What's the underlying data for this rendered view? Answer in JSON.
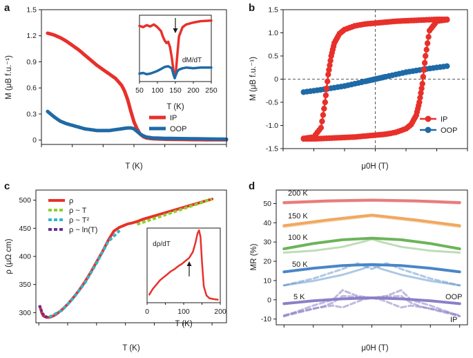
{
  "colors": {
    "red": "#e8302a",
    "blue": "#1e6aa6",
    "green": "#8ccf2e",
    "cyan": "#2fb6cc",
    "purple": "#6b2e90",
    "t200": "#e87c7c",
    "t150": "#f0a860",
    "t100": "#6db35a",
    "t50": "#4a86c6",
    "t5": "#8b80c6"
  },
  "panels": {
    "a": "a",
    "b": "b",
    "c": "c",
    "d": "d"
  },
  "chart_data": [
    {
      "id": "a",
      "type": "line",
      "xlabel": "T (K)",
      "ylabel": "M (μB f.u.⁻¹)",
      "xlim": [
        0,
        300
      ],
      "ylim": [
        -0.05,
        1.5
      ],
      "xticks": [
        0,
        50,
        100,
        150,
        200,
        250,
        300
      ],
      "yticks": [
        0,
        0.3,
        0.6,
        0.9,
        1.2,
        1.5
      ],
      "ytick_labels": [
        "0",
        "0.3",
        "0.6",
        "0.9",
        "1.2",
        "1.5"
      ],
      "legend": [
        "IP",
        "OOP"
      ],
      "series": [
        {
          "name": "IP",
          "x": [
            10,
            20,
            30,
            40,
            50,
            60,
            70,
            80,
            90,
            100,
            110,
            120,
            130,
            135,
            140,
            145,
            150,
            155,
            160,
            165,
            170,
            180,
            200,
            250,
            300
          ],
          "y": [
            1.23,
            1.21,
            1.18,
            1.14,
            1.09,
            1.04,
            0.98,
            0.92,
            0.86,
            0.81,
            0.76,
            0.71,
            0.63,
            0.56,
            0.46,
            0.33,
            0.21,
            0.13,
            0.07,
            0.04,
            0.025,
            0.015,
            0.01,
            0.005,
            0.003
          ]
        },
        {
          "name": "OOP",
          "x": [
            10,
            20,
            30,
            40,
            50,
            60,
            70,
            80,
            90,
            100,
            110,
            120,
            130,
            140,
            145,
            150,
            155,
            160,
            165,
            170,
            180,
            200,
            250,
            300
          ],
          "y": [
            0.33,
            0.27,
            0.22,
            0.19,
            0.17,
            0.15,
            0.13,
            0.12,
            0.11,
            0.11,
            0.11,
            0.12,
            0.13,
            0.14,
            0.14,
            0.13,
            0.1,
            0.07,
            0.05,
            0.035,
            0.025,
            0.02,
            0.015,
            0.01
          ]
        }
      ],
      "inset": {
        "xlabel": "T (K)",
        "annotation": "dM/dT",
        "xlim": [
          50,
          250
        ],
        "xticks": [
          50,
          100,
          150,
          200,
          250
        ],
        "series": [
          {
            "name": "IP",
            "x": [
              50,
              60,
              70,
              80,
              90,
              100,
              110,
              115,
              120,
              125,
              130,
              135,
              140,
              145,
              148,
              151,
              155,
              160,
              170,
              180,
              200,
              220,
              250
            ],
            "y": [
              0.84,
              0.82,
              0.85,
              0.83,
              0.86,
              0.82,
              0.76,
              0.68,
              0.62,
              0.58,
              0.6,
              0.52,
              0.36,
              0.15,
              0.08,
              0.12,
              0.38,
              0.68,
              0.82,
              0.86,
              0.89,
              0.91,
              0.92
            ]
          },
          {
            "name": "OOP",
            "x": [
              50,
              60,
              70,
              80,
              90,
              100,
              110,
              120,
              130,
              140,
              145,
              148,
              150,
              155,
              160,
              170,
              180,
              200,
              220,
              250
            ],
            "y": [
              0.12,
              0.13,
              0.11,
              0.12,
              0.14,
              0.16,
              0.19,
              0.22,
              0.23,
              0.2,
              0.1,
              0.05,
              0.08,
              0.15,
              0.18,
              0.2,
              0.21,
              0.2,
              0.21,
              0.21
            ]
          }
        ]
      }
    },
    {
      "id": "b",
      "type": "line",
      "xlabel": "μ0H (T)",
      "ylabel": "M (μB f.u.⁻¹)",
      "xlim": [
        -9,
        9
      ],
      "ylim": [
        -1.5,
        1.5
      ],
      "xticks": [
        -9,
        -6,
        -3,
        0,
        3,
        6,
        9
      ],
      "yticks": [
        -1.5,
        -1.0,
        -0.5,
        0,
        0.5,
        1.0,
        1.5
      ],
      "ytick_labels": [
        "-1.5",
        "-1.0",
        "-0.5",
        "0",
        "0.5",
        "1.0",
        "1.5"
      ],
      "legend": [
        "IP",
        "OOP"
      ],
      "series": [
        {
          "name": "IP upper",
          "x": [
            7,
            6,
            5,
            4,
            3,
            2,
            1,
            0,
            -1,
            -2,
            -3,
            -3.5,
            -4,
            -4.3,
            -4.6,
            -4.9,
            -5.3,
            -6,
            -7
          ],
          "y": [
            1.29,
            1.29,
            1.28,
            1.27,
            1.26,
            1.25,
            1.23,
            1.21,
            1.19,
            1.15,
            1.07,
            0.98,
            0.78,
            0.5,
            0.1,
            -0.5,
            -1.05,
            -1.25,
            -1.28
          ]
        },
        {
          "name": "IP lower",
          "x": [
            -7,
            -6,
            -5,
            -4,
            -3,
            -2,
            -1,
            0,
            1,
            2,
            3,
            3.5,
            4,
            4.3,
            4.6,
            4.9,
            5.3,
            6,
            7
          ],
          "y": [
            -1.29,
            -1.29,
            -1.28,
            -1.27,
            -1.26,
            -1.25,
            -1.23,
            -1.21,
            -1.19,
            -1.15,
            -1.07,
            -0.98,
            -0.78,
            -0.5,
            -0.1,
            0.5,
            1.05,
            1.25,
            1.28
          ]
        },
        {
          "name": "OOP",
          "x": [
            -7,
            -5,
            -3,
            -1,
            0,
            1,
            3,
            5,
            7
          ],
          "y": [
            -0.28,
            -0.22,
            -0.15,
            -0.05,
            0.0,
            0.05,
            0.15,
            0.22,
            0.28
          ]
        }
      ]
    },
    {
      "id": "c",
      "type": "line",
      "xlabel": "T (K)",
      "ylabel": "ρ (μΩ cm)",
      "xlim": [
        -5,
        325
      ],
      "ylim": [
        282,
        518
      ],
      "xticks": [
        0,
        50,
        100,
        150,
        200,
        250,
        300
      ],
      "yticks": [
        300,
        350,
        400,
        450,
        500
      ],
      "legend": [
        "ρ",
        "ρ ~ T",
        "ρ ~ T²",
        "ρ ~ ln(T)"
      ],
      "series": [
        {
          "name": "ρ",
          "x": [
            2,
            5,
            8,
            12,
            16,
            20,
            25,
            30,
            40,
            50,
            60,
            70,
            80,
            90,
            100,
            110,
            120,
            130,
            140,
            145,
            150,
            155,
            160,
            170,
            180,
            200,
            220,
            240,
            260,
            280,
            300
          ],
          "y": [
            311,
            300,
            294,
            292,
            291.5,
            292,
            294,
            297,
            305,
            315,
            327,
            340,
            355,
            372,
            390,
            408,
            428,
            445,
            452,
            454,
            456,
            458,
            459,
            462,
            466,
            472,
            478,
            484,
            490,
            496,
            502
          ]
        },
        {
          "name": "ρ ~ T",
          "x": [
            170,
            300
          ],
          "y": [
            457,
            502
          ]
        },
        {
          "name": "ρ ~ T²",
          "x": [
            18,
            40,
            60,
            80,
            100,
            120,
            140
          ],
          "y": [
            292,
            304,
            326,
            353,
            388,
            426,
            446
          ]
        },
        {
          "name": "ρ ~ ln(T)",
          "x": [
            1,
            4,
            7,
            10,
            13,
            16
          ],
          "y": [
            313,
            305,
            298,
            294,
            292.5,
            292
          ]
        }
      ],
      "inset": {
        "xlabel": "T (K)",
        "annotation": "dρ/dT",
        "xlim": [
          0,
          200
        ],
        "xticks": [
          0,
          100,
          200
        ],
        "xtick_labels": [
          "0",
          "100",
          "200"
        ],
        "xticks_minor": [
          50,
          150
        ],
        "series": [
          {
            "name": "dρ/dT",
            "x": [
              5,
              15,
              25,
              35,
              45,
              55,
              65,
              75,
              85,
              95,
              105,
              115,
              125,
              132,
              138,
              142,
              146,
              150,
              155,
              162,
              170,
              180,
              195
            ],
            "y": [
              0.1,
              0.18,
              0.24,
              0.3,
              0.34,
              0.38,
              0.42,
              0.45,
              0.49,
              0.52,
              0.56,
              0.6,
              0.68,
              0.8,
              0.93,
              0.97,
              0.88,
              0.55,
              0.22,
              0.1,
              0.06,
              0.05,
              0.04
            ]
          }
        ]
      }
    },
    {
      "id": "d",
      "type": "line",
      "xlabel": "μ0H (T)",
      "ylabel": "MR (%)",
      "xlim": [
        -9.8,
        9.8
      ],
      "ylim": [
        -13,
        57
      ],
      "xticks": [
        -9,
        -6,
        -3,
        0,
        3,
        6,
        9
      ],
      "yticks": [
        -10,
        0,
        10,
        20,
        30,
        40,
        50
      ],
      "labels": [
        "200 K",
        "150 K",
        "100 K",
        "50 K",
        "5 K",
        "OOP",
        "IP"
      ],
      "series": [
        {
          "name": "200 K OOP",
          "x": [
            -9,
            -4.5,
            0,
            4.5,
            9
          ],
          "y": [
            50.5,
            51.4,
            51.8,
            51.4,
            50.5
          ]
        },
        {
          "name": "200 K IP",
          "x": [
            -9,
            -4.5,
            0,
            4.5,
            9
          ],
          "y": [
            50.2,
            51.2,
            51.6,
            51.2,
            50.2
          ]
        },
        {
          "name": "150 K OOP",
          "x": [
            -9,
            -4.5,
            0,
            4.5,
            9
          ],
          "y": [
            38.5,
            41.5,
            44.0,
            41.5,
            38.5
          ]
        },
        {
          "name": "150 K IP",
          "x": [
            -9,
            -4.5,
            0,
            4.5,
            9
          ],
          "y": [
            38.0,
            41.0,
            43.6,
            41.0,
            38.0
          ]
        },
        {
          "name": "100 K OOP",
          "x": [
            -9,
            -6,
            -3,
            0,
            3,
            6,
            9
          ],
          "y": [
            26.5,
            29.2,
            31.2,
            32.0,
            31.2,
            29.2,
            26.5
          ]
        },
        {
          "name": "100 K IP",
          "x": [
            -9,
            -6,
            -3,
            -1,
            0,
            1,
            3,
            6,
            9
          ],
          "y": [
            24.5,
            25.5,
            27.5,
            30.0,
            31.5,
            30.0,
            27.5,
            25.5,
            24.5
          ]
        },
        {
          "name": "50 K OOP",
          "x": [
            -9,
            -6,
            -3,
            0,
            3,
            6,
            9
          ],
          "y": [
            14.5,
            16.4,
            17.8,
            18.3,
            17.8,
            16.4,
            14.5
          ]
        },
        {
          "name": "50 K IP",
          "x": [
            -9,
            -6,
            -3,
            -1,
            0,
            1,
            3,
            6,
            9
          ],
          "y": [
            7.5,
            9.8,
            13.0,
            16.0,
            18.0,
            16.0,
            13.0,
            9.8,
            7.5
          ]
        },
        {
          "name": "50 K IP dash",
          "x": [
            -9,
            -6,
            -3,
            -1.5,
            0,
            1.5,
            3,
            6,
            9
          ],
          "y": [
            7.5,
            11.0,
            16.0,
            19.0,
            16.0,
            19.0,
            16.0,
            11.0,
            7.5
          ]
        },
        {
          "name": "5 K OOP",
          "x": [
            -9,
            -6,
            -3,
            0,
            3,
            6,
            9
          ],
          "y": [
            -2.0,
            -0.5,
            0.5,
            1.0,
            0.5,
            -0.5,
            -2.0
          ]
        },
        {
          "name": "5 K IP a",
          "x": [
            -9,
            -7,
            -5,
            -4,
            -3,
            -1.5,
            0,
            1.5,
            3,
            4,
            5,
            7,
            9
          ],
          "y": [
            -8.5,
            -6.0,
            -3.5,
            -1.5,
            2.0,
            1.5,
            1.0,
            1.5,
            2.0,
            -1.5,
            -3.5,
            -6.0,
            -8.5
          ]
        },
        {
          "name": "5 K IP b",
          "x": [
            -9,
            -6,
            -4,
            -3,
            -1,
            0,
            1,
            3,
            4,
            6,
            9
          ],
          "y": [
            -8.0,
            -4.5,
            -3.0,
            -4.0,
            0.0,
            1.0,
            0.0,
            -4.0,
            -3.0,
            -4.5,
            -8.0
          ]
        },
        {
          "name": "5 K IP c",
          "x": [
            -9,
            -6,
            -4,
            -3,
            -1.5,
            0,
            1.5,
            3,
            4,
            6,
            9
          ],
          "y": [
            -8.5,
            -3.0,
            0.0,
            5.0,
            2.0,
            1.0,
            2.0,
            5.0,
            0.0,
            -3.0,
            -8.5
          ]
        }
      ]
    }
  ]
}
